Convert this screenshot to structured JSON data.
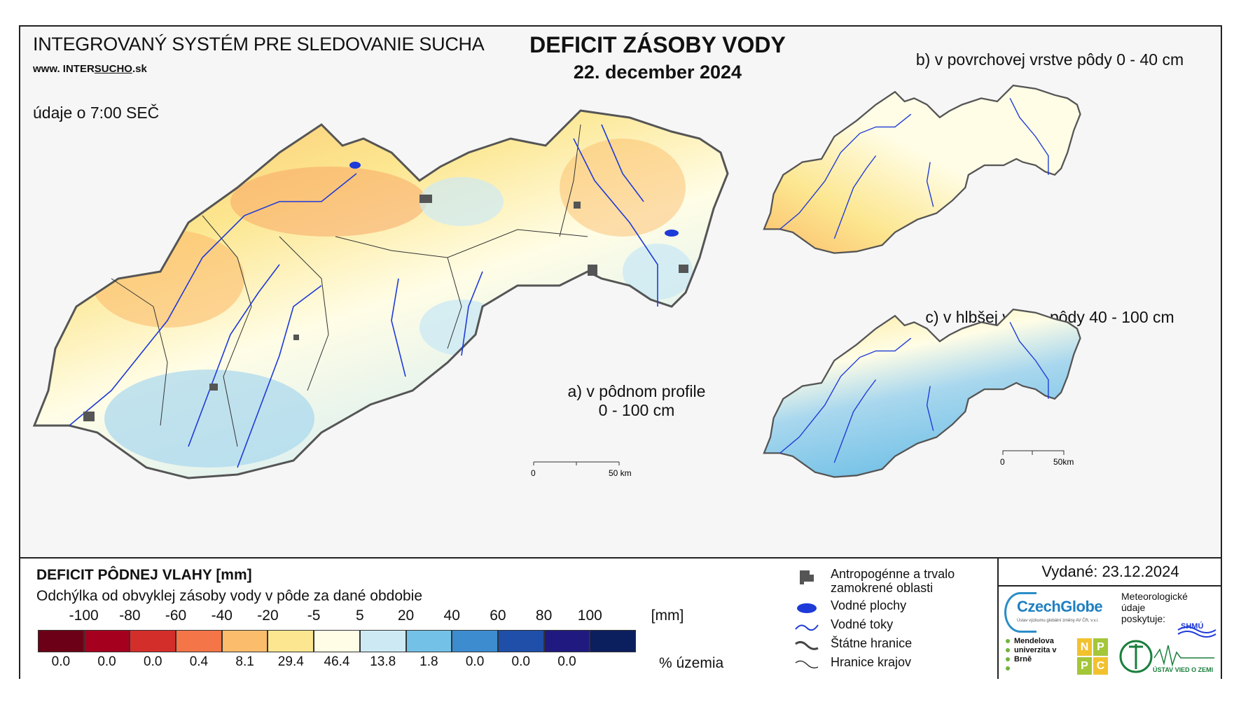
{
  "header": {
    "system_title": "INTEGROVANÝ SYSTÉM PRE SLEDOVANIE SUCHA",
    "url_prefix": "www. INTER",
    "url_highlight": "SUCHO",
    "url_suffix": ".sk",
    "data_time": "údaje o 7:00 SEČ",
    "title": "DEFICIT ZÁSOBY VODY",
    "date": "22. december 2024"
  },
  "maps": {
    "a_label_line1": "a) v pôdnom profile",
    "a_label_line2": "0 - 100 cm",
    "b_label": "b) v povrchovej vrstve pôdy 0 - 40 cm",
    "c_label": "c) v hlbšej vrstve pôdy 40 - 100 cm",
    "scale_a_zero": "0",
    "scale_a_end": "50 km",
    "scale_c_zero": "0",
    "scale_c_end": "50km"
  },
  "legend": {
    "title": "DEFICIT PÔDNEJ VLAHY [mm]",
    "subtitle": "Odchýlka od obvyklej zásoby vody v pôde za dané obdobie",
    "ticks": [
      "-100",
      "-80",
      "-60",
      "-40",
      "-20",
      "-5",
      "5",
      "20",
      "40",
      "60",
      "80",
      "100"
    ],
    "unit": "[mm]",
    "colors": [
      "#6b0016",
      "#a6001f",
      "#d42e2a",
      "#f37548",
      "#fbbd6c",
      "#fce68f",
      "#fffde6",
      "#cdeaf4",
      "#73c1e6",
      "#3d8ccf",
      "#1f4fa8",
      "#201a80",
      "#0b1e5e"
    ],
    "percents": [
      "0.0",
      "0.0",
      "0.0",
      "0.4",
      "8.1",
      "29.4",
      "46.4",
      "13.8",
      "1.8",
      "0.0",
      "0.0",
      "0.0"
    ],
    "percent_label": "% územia"
  },
  "symbols": {
    "anthropogenic": "Antropogénne a trvalo zamokrené oblasti",
    "water_bodies": "Vodné plochy",
    "rivers": "Vodné toky",
    "state_border": "Štátne hranice",
    "region_border": "Hranice krajov"
  },
  "issuer": {
    "issued": "Vydané: 23.12.2024",
    "czechglobe": "CzechGlobe",
    "czechglobe_sub": "Ústav výzkumu globální změny AV ČR, v.v.i.",
    "meteo": "Meteorologické údaje poskytuje:",
    "shmu": "SHMÚ",
    "mendel": "Mendelova univerzita v Brně",
    "nppc": [
      "N",
      "P",
      "P",
      "C"
    ],
    "uvoz": "ÚSTAV VIED O ZEMI"
  }
}
